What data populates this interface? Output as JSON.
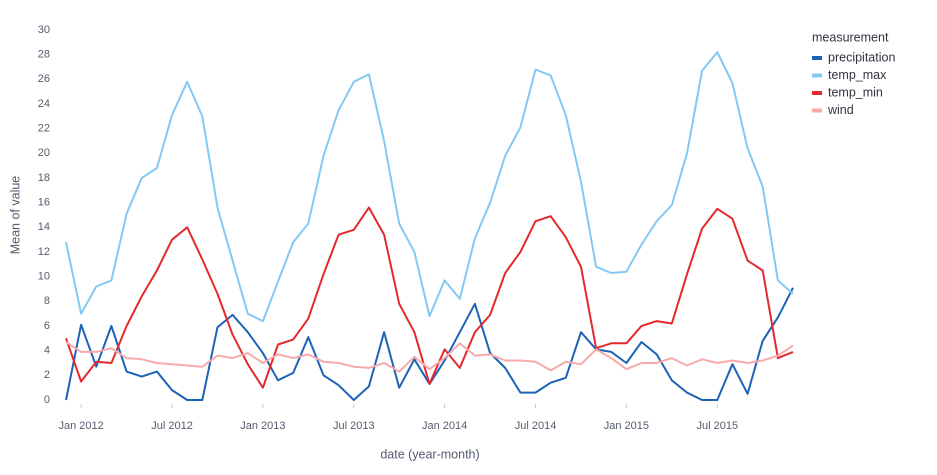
{
  "chart_data": {
    "type": "line",
    "x_label": "date (year-month)",
    "y_label": "Mean of value",
    "legend_title": "measurement",
    "x": [
      "2011-12",
      "2012-01",
      "2012-02",
      "2012-03",
      "2012-04",
      "2012-05",
      "2012-06",
      "2012-07",
      "2012-08",
      "2012-09",
      "2012-10",
      "2012-11",
      "2012-12",
      "2013-01",
      "2013-02",
      "2013-03",
      "2013-04",
      "2013-05",
      "2013-06",
      "2013-07",
      "2013-08",
      "2013-09",
      "2013-10",
      "2013-11",
      "2013-12",
      "2014-01",
      "2014-02",
      "2014-03",
      "2014-04",
      "2014-05",
      "2014-06",
      "2014-07",
      "2014-08",
      "2014-09",
      "2014-10",
      "2014-11",
      "2014-12",
      "2015-01",
      "2015-02",
      "2015-03",
      "2015-04",
      "2015-05",
      "2015-06",
      "2015-07",
      "2015-08",
      "2015-09",
      "2015-10",
      "2015-11",
      "2015-12"
    ],
    "series": [
      {
        "name": "precipitation",
        "color": "#1c63b7",
        "values": [
          0,
          6.1,
          2.7,
          6.0,
          2.3,
          1.9,
          2.3,
          0.8,
          0,
          0,
          5.9,
          6.9,
          5.5,
          3.8,
          1.6,
          2.2,
          5.1,
          2.0,
          1.2,
          0,
          1.1,
          5.5,
          1.0,
          3.3,
          1.3,
          3.2,
          5.5,
          7.8,
          3.8,
          2.6,
          0.6,
          0.6,
          1.4,
          1.8,
          5.5,
          4.1,
          3.9,
          3.0,
          4.7,
          3.7,
          1.6,
          0.6,
          0,
          0,
          2.9,
          0.5,
          4.8,
          6.7,
          9.1
        ]
      },
      {
        "name": "temp_max",
        "color": "#83c9f4",
        "values": [
          12.8,
          7.0,
          9.2,
          9.7,
          15.1,
          18.0,
          18.8,
          23.1,
          25.8,
          23.0,
          15.6,
          11.3,
          7.0,
          6.4,
          9.6,
          12.8,
          14.3,
          19.8,
          23.5,
          25.8,
          26.4,
          21.0,
          14.3,
          12.0,
          6.8,
          9.7,
          8.2,
          13.1,
          16.0,
          19.8,
          22.1,
          26.8,
          26.3,
          23.1,
          17.7,
          10.8,
          10.3,
          10.4,
          12.6,
          14.5,
          15.8,
          20.0,
          26.7,
          28.2,
          25.7,
          20.4,
          17.3,
          9.7,
          8.6
        ]
      },
      {
        "name": "temp_min",
        "color": "#e4292e",
        "values": [
          5.0,
          1.5,
          3.1,
          3.0,
          6.0,
          8.4,
          10.5,
          13.0,
          14.0,
          11.4,
          8.6,
          5.3,
          2.9,
          1.0,
          4.5,
          4.9,
          6.6,
          10.2,
          13.4,
          13.8,
          15.6,
          13.4,
          7.8,
          5.5,
          1.3,
          4.1,
          2.6,
          5.5,
          6.9,
          10.3,
          12.0,
          14.5,
          14.9,
          13.2,
          10.8,
          4.2,
          4.6,
          4.6,
          6.0,
          6.4,
          6.2,
          10.2,
          13.9,
          15.5,
          14.7,
          11.3,
          10.5,
          3.4,
          3.9
        ]
      },
      {
        "name": "wind",
        "color": "#f8aaaa",
        "values": [
          4.7,
          3.9,
          3.9,
          4.2,
          3.4,
          3.3,
          3.0,
          2.9,
          2.8,
          2.7,
          3.6,
          3.4,
          3.8,
          3.0,
          3.7,
          3.4,
          3.7,
          3.1,
          3.0,
          2.7,
          2.6,
          3.0,
          2.3,
          3.5,
          2.5,
          3.4,
          4.6,
          3.6,
          3.7,
          3.2,
          3.2,
          3.1,
          2.4,
          3.1,
          2.9,
          4.1,
          3.4,
          2.5,
          3.0,
          3.0,
          3.4,
          2.8,
          3.3,
          3.0,
          3.2,
          3.0,
          3.2,
          3.6,
          4.4
        ]
      }
    ],
    "xlim": [
      "2011-12",
      "2015-12"
    ],
    "xticks": [
      {
        "value": "2012-01",
        "label": "Jan 2012"
      },
      {
        "value": "2012-07",
        "label": "Jul 2012"
      },
      {
        "value": "2013-01",
        "label": "Jan 2013"
      },
      {
        "value": "2013-07",
        "label": "Jul 2013"
      },
      {
        "value": "2014-01",
        "label": "Jan 2014"
      },
      {
        "value": "2014-07",
        "label": "Jul 2014"
      },
      {
        "value": "2015-01",
        "label": "Jan 2015"
      },
      {
        "value": "2015-07",
        "label": "Jul 2015"
      }
    ],
    "ylim": [
      0,
      30
    ],
    "yticks": [
      0,
      2,
      4,
      6,
      8,
      10,
      12,
      14,
      16,
      18,
      20,
      22,
      24,
      26,
      28,
      30
    ],
    "grid": false,
    "legend_position": "right"
  }
}
